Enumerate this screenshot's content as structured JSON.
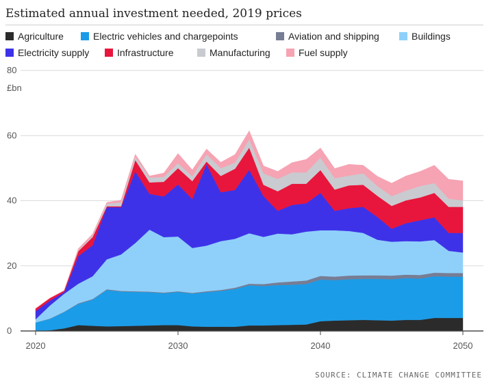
{
  "title": "Estimated annual investment needed, 2019 prices",
  "source": "SOURCE: CLIMATE CHANGE COMMITTEE",
  "colors": {
    "Agriculture": "#2b2b2b",
    "Electric vehicles and chargepoints": "#1b9ce8",
    "Aviation and shipping": "#777d94",
    "Buildings": "#8fd0fa",
    "Electricity supply": "#3e32e8",
    "Infrastructure": "#e8163c",
    "Manufacturing": "#c9cbd0",
    "Fuel supply": "#f6a3b3"
  },
  "legend": [
    "Agriculture",
    "Electric vehicles and chargepoints",
    "Aviation and shipping",
    "Buildings",
    "Electricity supply",
    "Infrastructure",
    "Manufacturing",
    "Fuel supply"
  ],
  "chart_data": {
    "type": "area",
    "stacked": true,
    "title": "Estimated annual investment needed, 2019 prices",
    "ylabel": "£bn",
    "xlabel": "",
    "xlim": [
      2020,
      2050
    ],
    "ylim": [
      0,
      80
    ],
    "yticks": [
      0,
      20,
      40,
      60,
      80
    ],
    "xticks": [
      2020,
      2030,
      2040,
      2050
    ],
    "grid": true,
    "legend_position": "top",
    "x": [
      2020,
      2021,
      2022,
      2023,
      2024,
      2025,
      2026,
      2027,
      2028,
      2029,
      2030,
      2031,
      2032,
      2033,
      2034,
      2035,
      2036,
      2037,
      2038,
      2039,
      2040,
      2041,
      2042,
      2043,
      2044,
      2045,
      2046,
      2047,
      2048,
      2049,
      2050
    ],
    "series": [
      {
        "name": "Agriculture",
        "values": [
          0.1,
          0.2,
          0.8,
          1.8,
          1.6,
          1.4,
          1.5,
          1.6,
          1.7,
          1.8,
          1.8,
          1.4,
          1.3,
          1.3,
          1.3,
          1.7,
          1.7,
          1.8,
          1.9,
          2.0,
          3.0,
          3.2,
          3.3,
          3.4,
          3.3,
          3.2,
          3.4,
          3.4,
          4.0,
          4.0,
          4.0
        ]
      },
      {
        "name": "Electric vehicles and chargepoints",
        "values": [
          2.5,
          3.5,
          5.0,
          6.5,
          8.0,
          11.2,
          10.6,
          10.4,
          10.2,
          9.8,
          10.2,
          10.1,
          10.6,
          11.0,
          11.6,
          12.3,
          12.1,
          12.3,
          12.3,
          12.4,
          12.8,
          12.4,
          12.6,
          12.6,
          12.7,
          12.7,
          12.8,
          12.7,
          12.8,
          12.7,
          12.7
        ]
      },
      {
        "name": "Aviation and shipping",
        "values": [
          0.0,
          0.1,
          0.1,
          0.2,
          0.2,
          0.2,
          0.2,
          0.2,
          0.2,
          0.2,
          0.2,
          0.2,
          0.3,
          0.3,
          0.4,
          0.5,
          0.6,
          0.8,
          1.0,
          1.1,
          1.1,
          1.1,
          1.1,
          1.1,
          1.1,
          1.1,
          1.1,
          1.1,
          1.1,
          1.1,
          1.1
        ]
      },
      {
        "name": "Buildings",
        "values": [
          1.0,
          4.0,
          5.5,
          6.0,
          7.0,
          9.2,
          11.2,
          14.8,
          19.0,
          17.0,
          16.8,
          13.8,
          14.0,
          15.0,
          15.0,
          15.5,
          14.5,
          15.0,
          14.5,
          15.0,
          14.0,
          14.2,
          13.7,
          13.0,
          10.9,
          10.4,
          10.3,
          10.3,
          10.0,
          6.8,
          6.3
        ]
      },
      {
        "name": "Electricity supply",
        "values": [
          2.5,
          1.5,
          0.5,
          8.5,
          9.5,
          16.0,
          14.5,
          22.0,
          11.0,
          12.5,
          16.0,
          15.0,
          25.0,
          15.0,
          15.0,
          19.5,
          12.5,
          7.0,
          9.0,
          8.7,
          11.5,
          6.0,
          7.0,
          8.0,
          7.0,
          4.0,
          5.5,
          6.5,
          7.0,
          5.5,
          6.0
        ]
      },
      {
        "name": "Infrastructure",
        "values": [
          0.8,
          0.8,
          0.5,
          1.5,
          2.5,
          0.3,
          0.3,
          3.5,
          3.5,
          4.5,
          5.0,
          5.5,
          0.8,
          5.0,
          6.5,
          6.8,
          3.5,
          6.0,
          6.5,
          6.0,
          7.0,
          6.5,
          7.0,
          6.8,
          6.5,
          7.0,
          7.0,
          7.0,
          7.5,
          8.0,
          8.0
        ]
      },
      {
        "name": "Manufacturing",
        "values": [
          0.0,
          0.0,
          0.0,
          0.3,
          0.5,
          0.8,
          1.2,
          1.0,
          1.5,
          1.5,
          1.5,
          1.5,
          2.2,
          2.4,
          1.9,
          2.5,
          3.5,
          3.8,
          3.5,
          3.5,
          3.8,
          3.5,
          3.0,
          3.5,
          3.0,
          3.0,
          3.0,
          3.5,
          3.0,
          2.5,
          2.0
        ]
      },
      {
        "name": "Fuel supply",
        "values": [
          0.0,
          0.0,
          0.0,
          0.5,
          0.5,
          0.4,
          0.7,
          0.8,
          0.5,
          1.2,
          3.0,
          2.0,
          1.7,
          1.8,
          2.5,
          2.7,
          2.3,
          2.3,
          3.0,
          4.0,
          3.0,
          3.0,
          3.5,
          2.5,
          3.0,
          4.0,
          4.5,
          4.5,
          5.5,
          6.0,
          6.0
        ]
      }
    ]
  }
}
